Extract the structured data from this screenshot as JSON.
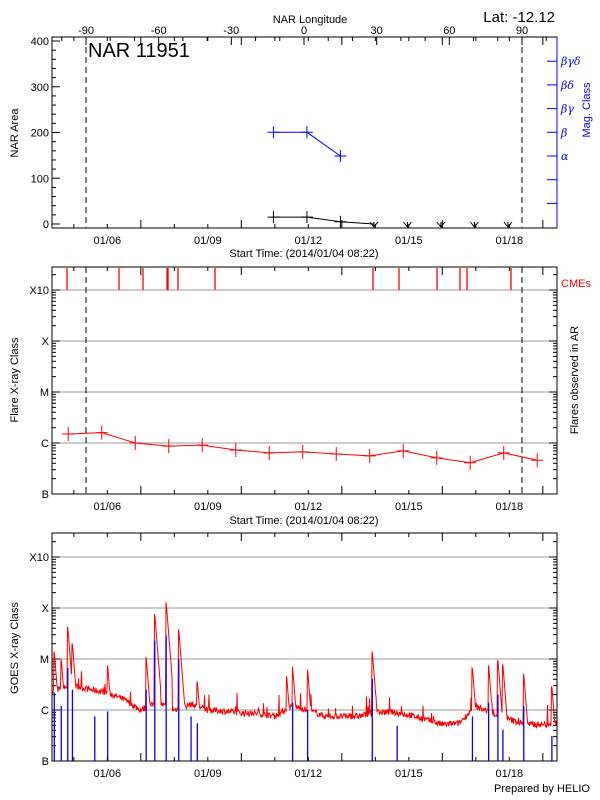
{
  "chart_data": [
    {
      "type": "line",
      "title": "NAR 11951",
      "annotation": "Lat: -12.12",
      "top_axis_label": "NAR Longitude",
      "top_ticks": [
        "-90",
        "-60",
        "-30",
        "0",
        "30",
        "60",
        "90"
      ],
      "longitude_markers": [
        -90,
        90
      ],
      "ylabel": "NAR Area",
      "y_ticks": [
        "0",
        "100",
        "200",
        "300",
        "400"
      ],
      "ylim": [
        0,
        400
      ],
      "right_label": "Mag. Class",
      "mag_classes": [
        "α",
        "β",
        "βγ",
        "βδ",
        "βγδ"
      ],
      "xlabel": "Start Time: (2014/01/04 08:22)",
      "x_ticks": [
        "01/06",
        "01/09",
        "01/12",
        "01/15",
        "01/18"
      ],
      "colors": {
        "area": "#000000",
        "mag_class": "#0000ff"
      },
      "area": [
        {
          "date": "2014-01-10T23:00",
          "value": 15
        },
        {
          "date": "2014-01-11T23:00",
          "value": 15
        },
        {
          "date": "2014-01-12T23:00",
          "value": 5
        },
        {
          "date": "2014-01-13T23:00",
          "value": 0
        },
        {
          "date": "2014-01-14T23:00",
          "value": 0
        },
        {
          "date": "2014-01-15T23:00",
          "value": 0
        },
        {
          "date": "2014-01-16T23:00",
          "value": 0
        },
        {
          "date": "2014-01-17T23:00",
          "value": 0
        }
      ],
      "mag_class": [
        {
          "date": "2014-01-10T23:00",
          "value": "β"
        },
        {
          "date": "2014-01-11T23:00",
          "value": "β"
        },
        {
          "date": "2014-01-12T23:00",
          "value": "α"
        }
      ]
    },
    {
      "type": "line",
      "ylabel": "Flare X-ray Class",
      "right_label": "Flares observed in AR",
      "cme_label": "CMEs",
      "y_ticks": [
        "B",
        "C",
        "M",
        "X",
        "X10"
      ],
      "y_scale": "log",
      "xlabel": "Start Time: (2014/01/04 08:22)",
      "x_ticks": [
        "01/06",
        "01/09",
        "01/12",
        "01/15",
        "01/18"
      ],
      "grid": true,
      "colors": {
        "flares": "#ff0000",
        "cmes": "#ff0000",
        "grid": "#999999"
      },
      "cmes": [
        "2014-01-04T19:08",
        "2014-01-06T08:22",
        "2014-01-07T01:34",
        "2014-01-07T18:46",
        "2014-01-07T19:29",
        "2014-01-08T02:38",
        "2014-01-09T05:10",
        "2014-01-13T22:20",
        "2014-01-14T16:58",
        "2014-01-15T20:12",
        "2014-01-16T12:40",
        "2014-01-16T17:41",
        "2014-01-18T01:12"
      ],
      "flares": [
        {
          "date": "2014-01-04T20:00",
          "class": "C1.5"
        },
        {
          "date": "2014-01-05T20:00",
          "class": "C1.6"
        },
        {
          "date": "2014-01-06T20:00",
          "class": "C1.0"
        },
        {
          "date": "2014-01-07T20:00",
          "class": "B8.7"
        },
        {
          "date": "2014-01-08T20:00",
          "class": "B9.1"
        },
        {
          "date": "2014-01-09T20:00",
          "class": "B7.3"
        },
        {
          "date": "2014-01-10T20:00",
          "class": "B6.4"
        },
        {
          "date": "2014-01-11T20:00",
          "class": "B6.7"
        },
        {
          "date": "2014-01-12T20:00",
          "class": "B6.1"
        },
        {
          "date": "2014-01-13T20:00",
          "class": "B5.6"
        },
        {
          "date": "2014-01-14T20:00",
          "class": "B7.0"
        },
        {
          "date": "2014-01-15T20:00",
          "class": "B5.1"
        },
        {
          "date": "2014-01-16T20:00",
          "class": "B4.1"
        },
        {
          "date": "2014-01-17T20:00",
          "class": "B6.4"
        },
        {
          "date": "2014-01-18T20:00",
          "class": "B4.6"
        }
      ]
    },
    {
      "type": "line",
      "ylabel": "GOES X-ray Class",
      "y_ticks": [
        "B",
        "C",
        "M",
        "X",
        "X10"
      ],
      "y_scale": "log",
      "x_ticks": [
        "01/06",
        "01/09",
        "01/12",
        "01/15",
        "01/18"
      ],
      "grid": true,
      "footer": "Prepared by HELIO",
      "colors": {
        "long_channel": "#ff0000",
        "short_channel": "#0000ff"
      },
      "long_channel_background": [
        [
          "2014-01-04T08:22",
          "C2.3"
        ],
        [
          "2014-01-04T12:00",
          "C2.5"
        ],
        [
          "2014-01-05T00:00",
          "C3.0"
        ],
        [
          "2014-01-05T12:00",
          "C2.5"
        ],
        [
          "2014-01-06T00:00",
          "C2.2"
        ],
        [
          "2014-01-06T12:00",
          "C1.6"
        ],
        [
          "2014-01-07T00:00",
          "C1.0"
        ],
        [
          "2014-01-07T12:00",
          "C1.4"
        ],
        [
          "2014-01-08T00:00",
          "C1.0"
        ],
        [
          "2014-01-08T12:00",
          "C1.3"
        ],
        [
          "2014-01-09T00:00",
          "C1.0"
        ],
        [
          "2014-01-09T12:00",
          "B9.5"
        ],
        [
          "2014-01-10T00:00",
          "B8.7"
        ],
        [
          "2014-01-10T12:00",
          "B8.5"
        ],
        [
          "2014-01-11T00:00",
          "B7.5"
        ],
        [
          "2014-01-11T12:00",
          "C1.2"
        ],
        [
          "2014-01-12T00:00",
          "C1.0"
        ],
        [
          "2014-01-12T12:00",
          "B7.5"
        ],
        [
          "2014-01-13T00:00",
          "B7.5"
        ],
        [
          "2014-01-13T12:00",
          "B7.5"
        ],
        [
          "2014-01-14T00:00",
          "B9.0"
        ],
        [
          "2014-01-14T12:00",
          "B9.0"
        ],
        [
          "2014-01-15T00:00",
          "B8.0"
        ],
        [
          "2014-01-15T12:00",
          "B6.5"
        ],
        [
          "2014-01-16T00:00",
          "B5.2"
        ],
        [
          "2014-01-16T12:00",
          "B5.5"
        ],
        [
          "2014-01-17T00:00",
          "C1.2"
        ],
        [
          "2014-01-17T12:00",
          "B8.5"
        ],
        [
          "2014-01-18T00:00",
          "B6.5"
        ],
        [
          "2014-01-18T12:00",
          "B5.2"
        ],
        [
          "2014-01-19T00:00",
          "B5.2"
        ],
        [
          "2014-01-19T10:00",
          "B5.5"
        ]
      ],
      "long_channel_peaks": [
        [
          "2014-01-04T10:00",
          "M1.4"
        ],
        [
          "2014-01-04T15:00",
          "M1.0"
        ],
        [
          "2014-01-04T19:40",
          "M4.3"
        ],
        [
          "2014-01-04T23:00",
          "M2.0"
        ],
        [
          "2014-01-06T00:15",
          "C7.5"
        ],
        [
          "2014-01-07T03:50",
          "M1.1"
        ],
        [
          "2014-01-07T10:00",
          "M7.6"
        ],
        [
          "2014-01-07T18:10",
          "X1.3"
        ],
        [
          "2014-01-08T03:10",
          "M3.8"
        ],
        [
          "2014-01-08T16:30",
          "C3.6"
        ],
        [
          "2014-01-11T08:30",
          "C4.6"
        ],
        [
          "2014-01-11T12:45",
          "C7.0"
        ],
        [
          "2014-01-11T23:30",
          "C6.2"
        ],
        [
          "2014-01-13T21:50",
          "M1.4"
        ],
        [
          "2014-01-16T21:35",
          "C6.6"
        ],
        [
          "2014-01-17T09:10",
          "C7.5"
        ],
        [
          "2014-01-17T15:50",
          "C9.4"
        ],
        [
          "2014-01-17T19:25",
          "C7.6"
        ],
        [
          "2014-01-18T10:20",
          "C5.1"
        ],
        [
          "2014-01-19T06:30",
          "C2.9"
        ]
      ],
      "short_channel_peaks": [
        [
          "2014-01-04T10:00",
          "C2.2"
        ],
        [
          "2014-01-04T15:00",
          "C1.2"
        ],
        [
          "2014-01-04T19:40",
          "C6.7"
        ],
        [
          "2014-01-04T23:00",
          "C2.5"
        ],
        [
          "2014-01-05T15:00",
          "B7.5"
        ],
        [
          "2014-01-06T00:15",
          "B9.4"
        ],
        [
          "2014-01-07T03:50",
          "C2.5"
        ],
        [
          "2014-01-07T10:00",
          "M2.3"
        ],
        [
          "2014-01-07T18:10",
          "M2.9"
        ],
        [
          "2014-01-08T03:10",
          "C9.8"
        ],
        [
          "2014-01-08T12:00",
          "B7.5"
        ],
        [
          "2014-01-08T16:30",
          "B5.5"
        ],
        [
          "2014-01-11T12:45",
          "C1.4"
        ],
        [
          "2014-01-11T23:30",
          "C1.0"
        ],
        [
          "2014-01-13T21:50",
          "C4.1"
        ],
        [
          "2014-01-14T15:40",
          "B4.9"
        ],
        [
          "2014-01-16T21:35",
          "B7.5"
        ],
        [
          "2014-01-17T09:10",
          "C1.4"
        ],
        [
          "2014-01-17T15:50",
          "C2.0"
        ],
        [
          "2014-01-17T19:25",
          "B4.1"
        ],
        [
          "2014-01-18T10:20",
          "C1.2"
        ],
        [
          "2014-01-19T06:30",
          "B3.1"
        ]
      ]
    }
  ]
}
